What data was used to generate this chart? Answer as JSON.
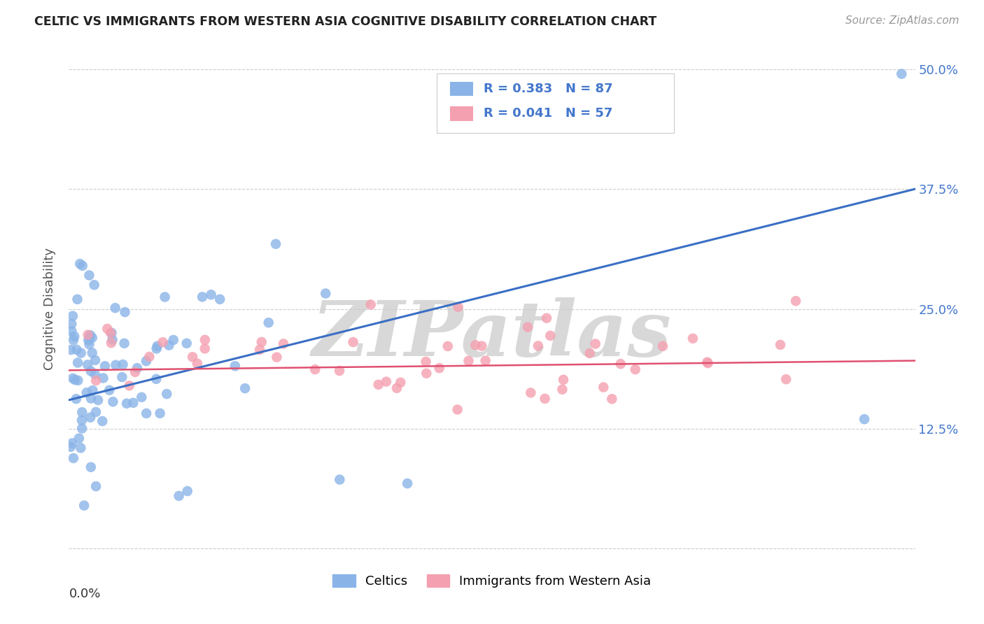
{
  "title": "CELTIC VS IMMIGRANTS FROM WESTERN ASIA COGNITIVE DISABILITY CORRELATION CHART",
  "source": "Source: ZipAtlas.com",
  "ylabel": "Cognitive Disability",
  "xlim": [
    0.0,
    0.5
  ],
  "ylim": [
    -0.02,
    0.52
  ],
  "celtic_R": 0.383,
  "celtic_N": 87,
  "wa_R": 0.041,
  "wa_N": 57,
  "celtic_color": "#8ab4e8",
  "wa_color": "#f4a0b0",
  "celtic_line_color": "#3a6fc4",
  "wa_line_color": "#e05070",
  "legend_label_celtic": "Celtics",
  "legend_label_wa": "Immigrants from Western Asia",
  "background_color": "#ffffff",
  "grid_color": "#cccccc",
  "title_color": "#222222",
  "axis_label_color": "#4477cc",
  "watermark_text": "ZIPatlas",
  "watermark_color": "#d8d8d8",
  "ytick_vals": [
    0.0,
    0.125,
    0.25,
    0.375,
    0.5
  ],
  "ytick_labels": [
    "",
    "12.5%",
    "25.0%",
    "37.5%",
    "50.0%"
  ],
  "right_ytick_vals": [
    0.125,
    0.25,
    0.375,
    0.5
  ],
  "right_ytick_labels": [
    "12.5%",
    "25.0%",
    "37.5%",
    "50.0%"
  ]
}
